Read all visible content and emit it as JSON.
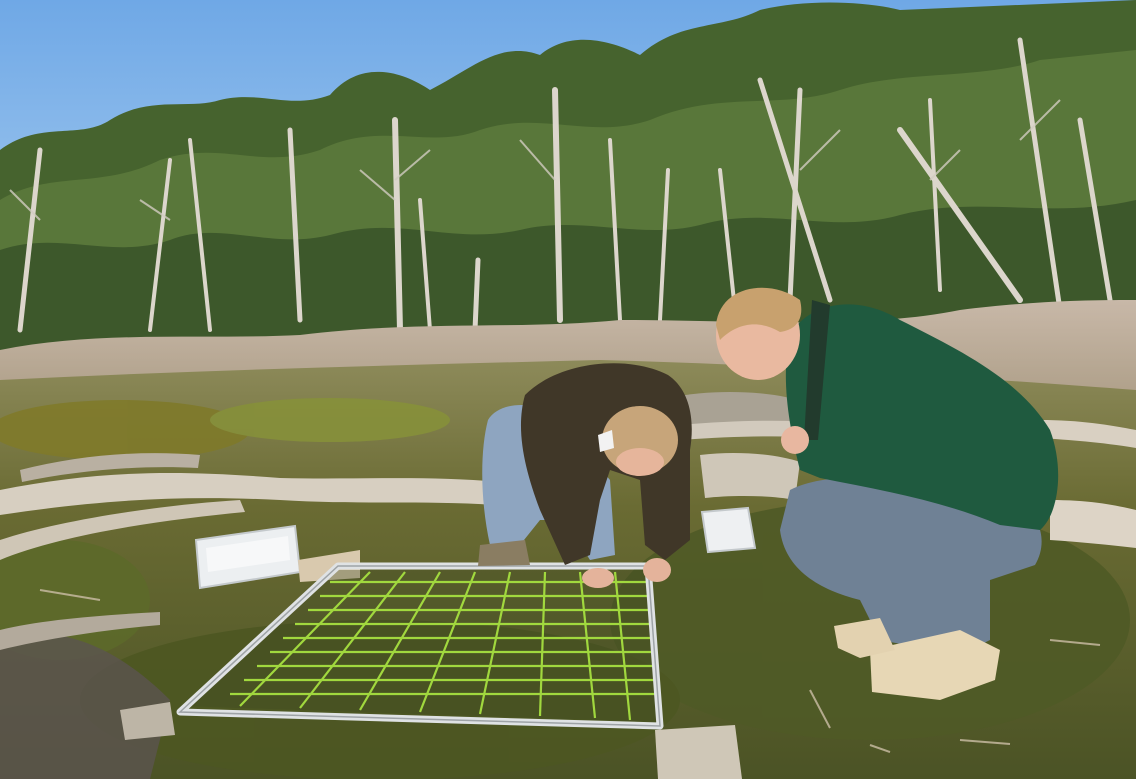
{
  "scene": {
    "description_colors": {
      "sky": "#9cc6ee",
      "forest_dark": "#3d5a2c",
      "forest_mid": "#6f8a4a",
      "dry_grass": "#c9b9a4",
      "moss": "#5f6e2a",
      "rock": "#8a7f73",
      "log": "#d8d0c4",
      "frame": "#d9d9d9",
      "string": "#9bdc3a",
      "jumper_brown": "#3f3628",
      "jumper_green": "#1f5a3f",
      "jeans": "#7f93aa",
      "boots": "#e8d8b8",
      "hair": "#c8a474",
      "skin": "#e9b9a0",
      "container": "#eef0f1"
    }
  }
}
